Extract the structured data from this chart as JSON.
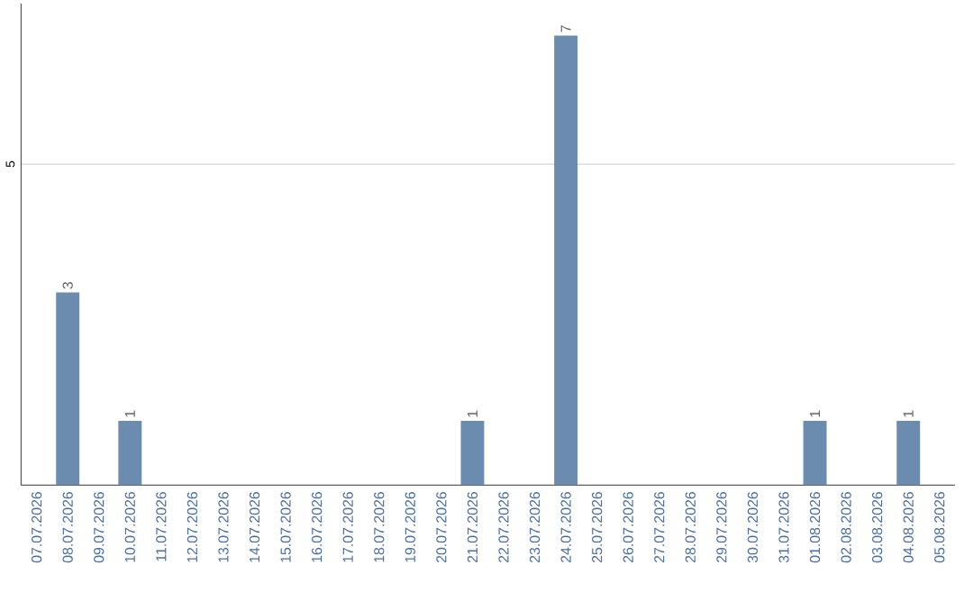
{
  "chart_data": {
    "type": "bar",
    "categories": [
      "07.07.2026",
      "08.07.2026",
      "09.07.2026",
      "10.07.2026",
      "11.07.2026",
      "12.07.2026",
      "13.07.2026",
      "14.07.2026",
      "15.07.2026",
      "16.07.2026",
      "17.07.2026",
      "18.07.2026",
      "19.07.2026",
      "20.07.2026",
      "21.07.2026",
      "22.07.2026",
      "23.07.2026",
      "24.07.2026",
      "25.07.2026",
      "26.07.2026",
      "27.07.2026",
      "28.07.2026",
      "29.07.2026",
      "30.07.2026",
      "31.07.2026",
      "01.08.2026",
      "02.08.2026",
      "03.08.2026",
      "04.08.2026",
      "05.08.2026"
    ],
    "values": [
      0,
      3,
      0,
      1,
      0,
      0,
      0,
      0,
      0,
      0,
      0,
      0,
      0,
      0,
      1,
      0,
      0,
      7,
      0,
      0,
      0,
      0,
      0,
      0,
      0,
      1,
      0,
      0,
      1,
      0
    ],
    "value_labels": [
      null,
      "3",
      null,
      "1",
      null,
      null,
      null,
      null,
      null,
      null,
      null,
      null,
      null,
      null,
      "1",
      null,
      null,
      "7",
      null,
      null,
      null,
      null,
      null,
      null,
      null,
      "1",
      null,
      null,
      "1",
      null
    ],
    "color": "#6b8cae",
    "ylim": [
      0,
      7.5
    ],
    "yticks": [
      5
    ],
    "grid": "y"
  }
}
